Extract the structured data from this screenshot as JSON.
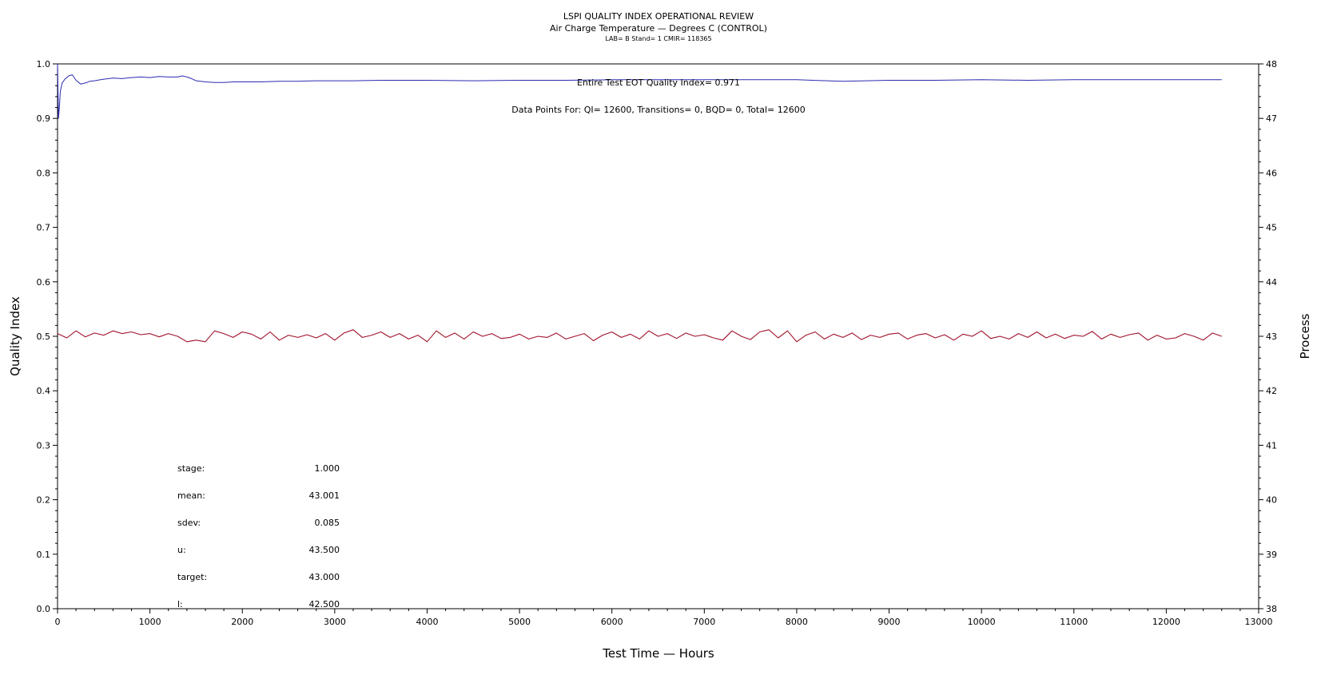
{
  "header": {
    "title": "LSPI QUALITY INDEX OPERATIONAL REVIEW",
    "subtitle": "Air Charge Temperature — Degrees C (CONTROL)",
    "sub2": "LAB= B Stand= 1 CMIR= 118365"
  },
  "annotations": {
    "eot": "Entire Test EOT Quality Index=   0.971",
    "points": "Data Points For: QI= 12600, Transitions=     0, BQD=     0, Total= 12600"
  },
  "stats": [
    {
      "label": "stage:",
      "value": "1.000"
    },
    {
      "label": "mean:",
      "value": "43.001"
    },
    {
      "label": "sdev:",
      "value": "0.085"
    },
    {
      "label": "u:",
      "value": "43.500"
    },
    {
      "label": "target:",
      "value": "43.000"
    },
    {
      "label": "l:",
      "value": "42.500"
    }
  ],
  "chart_data": {
    "type": "line",
    "xlabel": "Test Time — Hours",
    "ylabel": "Quality Index",
    "y2label": "Process",
    "xlim": [
      0,
      13000
    ],
    "ylim": [
      0.0,
      1.0
    ],
    "y2lim": [
      38,
      48
    ],
    "x_ticks": [
      "0",
      "1000",
      "2000",
      "3000",
      "4000",
      "5000",
      "6000",
      "7000",
      "8000",
      "9000",
      "10000",
      "11000",
      "12000",
      "13000"
    ],
    "y_ticks": [
      "0.0",
      "0.1",
      "0.2",
      "0.3",
      "0.4",
      "0.5",
      "0.6",
      "0.7",
      "0.8",
      "0.9",
      "1.0"
    ],
    "y2_ticks": [
      "38",
      "39",
      "40",
      "41",
      "42",
      "43",
      "44",
      "45",
      "46",
      "47",
      "48"
    ],
    "colors": {
      "quality": "#2b2bb0",
      "process": "#a0102a"
    },
    "series": [
      {
        "axis": "left",
        "color": "#2b2bb0",
        "x": [
          0,
          10,
          20,
          30,
          50,
          80,
          120,
          160,
          200,
          250,
          300,
          350,
          400,
          500,
          600,
          700,
          800,
          900,
          1000,
          1100,
          1200,
          1300,
          1350,
          1400,
          1450,
          1500,
          1600,
          1700,
          1800,
          1900,
          2000,
          2200,
          2400,
          2600,
          2800,
          3000,
          3200,
          3500,
          4000,
          4500,
          5000,
          5500,
          6000,
          6500,
          7000,
          7500,
          8000,
          8500,
          9000,
          9500,
          10000,
          10500,
          11000,
          11500,
          12000,
          12600
        ],
        "y": [
          1.0,
          0.9,
          0.92,
          0.95,
          0.965,
          0.972,
          0.978,
          0.98,
          0.97,
          0.963,
          0.965,
          0.968,
          0.969,
          0.972,
          0.974,
          0.973,
          0.975,
          0.976,
          0.975,
          0.977,
          0.976,
          0.976,
          0.978,
          0.976,
          0.973,
          0.969,
          0.967,
          0.966,
          0.966,
          0.967,
          0.967,
          0.967,
          0.968,
          0.968,
          0.969,
          0.969,
          0.969,
          0.97,
          0.97,
          0.969,
          0.97,
          0.97,
          0.971,
          0.971,
          0.971,
          0.971,
          0.971,
          0.968,
          0.97,
          0.97,
          0.971,
          0.97,
          0.971,
          0.971,
          0.971,
          0.971
        ]
      },
      {
        "axis": "right",
        "color": "#a0102a",
        "x": [
          0,
          100,
          200,
          300,
          400,
          500,
          600,
          700,
          800,
          900,
          1000,
          1100,
          1200,
          1300,
          1400,
          1500,
          1600,
          1700,
          1800,
          1900,
          2000,
          2100,
          2200,
          2300,
          2400,
          2500,
          2600,
          2700,
          2800,
          2900,
          3000,
          3100,
          3200,
          3300,
          3400,
          3500,
          3600,
          3700,
          3800,
          3900,
          4000,
          4100,
          4200,
          4300,
          4400,
          4500,
          4600,
          4700,
          4800,
          4900,
          5000,
          5100,
          5200,
          5300,
          5400,
          5500,
          5600,
          5700,
          5800,
          5900,
          6000,
          6100,
          6200,
          6300,
          6400,
          6500,
          6600,
          6700,
          6800,
          6900,
          7000,
          7100,
          7200,
          7300,
          7400,
          7500,
          7600,
          7700,
          7800,
          7900,
          8000,
          8100,
          8200,
          8300,
          8400,
          8500,
          8600,
          8700,
          8800,
          8900,
          9000,
          9100,
          9200,
          9300,
          9400,
          9500,
          9600,
          9700,
          9800,
          9900,
          10000,
          10100,
          10200,
          10300,
          10400,
          10500,
          10600,
          10700,
          10800,
          10900,
          11000,
          11100,
          11200,
          11300,
          11400,
          11500,
          11600,
          11700,
          11800,
          11900,
          12000,
          12100,
          12200,
          12300,
          12400,
          12500,
          12600
        ],
        "y": [
          43.05,
          42.97,
          43.1,
          42.99,
          43.06,
          43.02,
          43.1,
          43.05,
          43.08,
          43.03,
          43.05,
          42.99,
          43.05,
          43.0,
          42.9,
          42.93,
          42.9,
          43.1,
          43.05,
          42.98,
          43.08,
          43.04,
          42.95,
          43.08,
          42.93,
          43.02,
          42.98,
          43.03,
          42.97,
          43.05,
          42.93,
          43.06,
          43.12,
          42.98,
          43.02,
          43.08,
          42.98,
          43.05,
          42.95,
          43.02,
          42.9,
          43.1,
          42.98,
          43.06,
          42.95,
          43.08,
          43.0,
          43.05,
          42.96,
          42.98,
          43.04,
          42.95,
          43.0,
          42.98,
          43.06,
          42.95,
          43.0,
          43.05,
          42.92,
          43.02,
          43.08,
          42.98,
          43.04,
          42.95,
          43.1,
          43.0,
          43.05,
          42.96,
          43.06,
          43.0,
          43.03,
          42.97,
          42.93,
          43.1,
          43.0,
          42.94,
          43.08,
          43.12,
          42.97,
          43.1,
          42.9,
          43.02,
          43.08,
          42.95,
          43.04,
          42.98,
          43.06,
          42.94,
          43.02,
          42.98,
          43.04,
          43.06,
          42.95,
          43.02,
          43.05,
          42.97,
          43.03,
          42.93,
          43.04,
          43.0,
          43.1,
          42.96,
          43.0,
          42.95,
          43.05,
          42.98,
          43.08,
          42.97,
          43.04,
          42.96,
          43.02,
          43.0,
          43.09,
          42.95,
          43.04,
          42.98,
          43.03,
          43.06,
          42.93,
          43.02,
          42.95,
          42.97,
          43.05,
          43.0,
          42.93,
          43.06,
          43.0
        ]
      }
    ]
  }
}
